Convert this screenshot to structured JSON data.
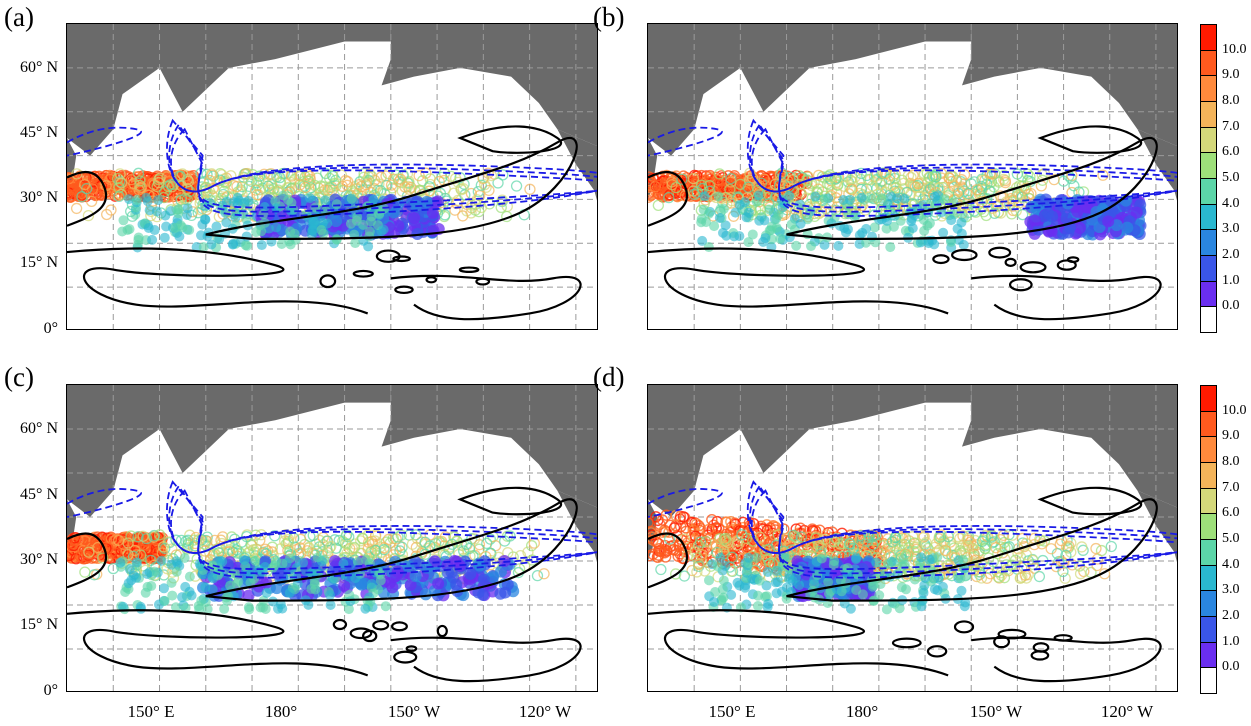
{
  "panels": [
    {
      "label": "(a)"
    },
    {
      "label": "(b)"
    },
    {
      "label": "(c)"
    },
    {
      "label": "(d)"
    }
  ],
  "lat_labels": [
    "60° N",
    "45° N",
    "30° N",
    "15° N",
    "0°"
  ],
  "lon_labels": [
    "150° E",
    "180°",
    "150° W",
    "120° W"
  ],
  "colorbar": {
    "ticks": [
      "10.0",
      "9.0",
      "8.0",
      "7.0",
      "6.0",
      "5.0",
      "4.0",
      "3.0",
      "2.0",
      "1.0",
      "0.0"
    ],
    "colors": [
      "#ff1a00",
      "#ff5a1e",
      "#ff8a3c",
      "#f4b45a",
      "#d4d87a",
      "#9ee07a",
      "#5cd6a8",
      "#2ab8d0",
      "#2a86e0",
      "#3a56e8",
      "#6a2ef0",
      "#ffffff"
    ]
  },
  "colors": {
    "land": "#6a6a6a",
    "grid": "#9a9a9a",
    "contour_solid": "#000000",
    "contour_dashed": "#1a1ae6"
  }
}
